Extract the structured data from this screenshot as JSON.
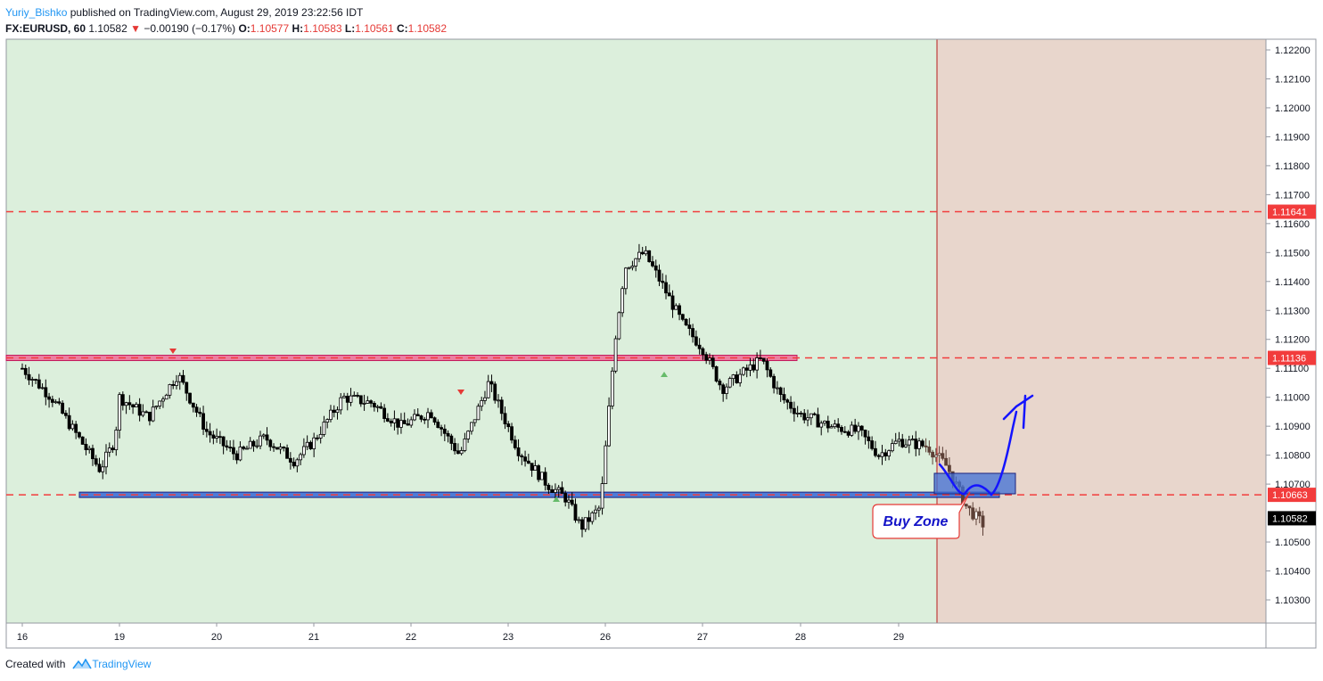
{
  "header": {
    "author": "Yuriy_Bishko",
    "published": "published on TradingView.com, August 29, 2019 23:22:56 IDT",
    "symbol": "FX:EURUSD, 60",
    "last": "1.10582",
    "change": "−0.00190 (−0.17%)",
    "o_label": "O:",
    "o_value": "1.10577",
    "h_label": "H:",
    "h_value": "1.10583",
    "l_label": "L:",
    "l_value": "1.10561",
    "c_label": "C:",
    "c_value": "1.10582"
  },
  "footer": {
    "created_with": "Created with",
    "brand": "TradingView"
  },
  "colors": {
    "bg_past": "#dcefdc",
    "bg_future": "#e8d6cc",
    "resistance": "#f06292",
    "support": "#3f6fd6",
    "level_line": "#f23c3c",
    "candle": "#000000",
    "arrow": "#1414ff",
    "last_price_tag": "#000000"
  },
  "chart_data": {
    "type": "candlestick",
    "symbol": "FX:EURUSD",
    "timeframe": "60",
    "x_ticks": [
      "16",
      "19",
      "20",
      "21",
      "22",
      "23",
      "26",
      "27",
      "28",
      "29"
    ],
    "y_ticks": [
      "1.12200",
      "1.12100",
      "1.12000",
      "1.11900",
      "1.11800",
      "1.11700",
      "1.11600",
      "1.11500",
      "1.11400",
      "1.11300",
      "1.11200",
      "1.11100",
      "1.11000",
      "1.10900",
      "1.10800",
      "1.10700",
      "1.10500",
      "1.10400",
      "1.10300"
    ],
    "ylim": [
      1.1025,
      1.1227
    ],
    "levels": [
      {
        "label": "1.11641",
        "value": 1.11641
      },
      {
        "label": "1.11136",
        "value": 1.11136
      },
      {
        "label": "1.10663",
        "value": 1.10663
      }
    ],
    "last_price": {
      "label": "1.10582",
      "value": 1.10582
    },
    "annotations": [
      {
        "text": "Buy Zone"
      }
    ],
    "close_path": [
      [
        0,
        1.111
      ],
      [
        0.3,
        1.11
      ],
      [
        0.6,
        1.1085
      ],
      [
        0.8,
        1.1075
      ],
      [
        0.95,
        1.1085
      ],
      [
        1.0,
        1.11
      ],
      [
        1.3,
        1.1093
      ],
      [
        1.6,
        1.1108
      ],
      [
        1.9,
        1.1088
      ],
      [
        2.2,
        1.108
      ],
      [
        2.5,
        1.1086
      ],
      [
        2.8,
        1.1078
      ],
      [
        3.0,
        1.1085
      ],
      [
        3.3,
        1.11
      ],
      [
        3.6,
        1.1098
      ],
      [
        3.9,
        1.109
      ],
      [
        4.2,
        1.1095
      ],
      [
        4.5,
        1.108
      ],
      [
        4.8,
        1.1105
      ],
      [
        5.1,
        1.1082
      ],
      [
        5.4,
        1.107
      ],
      [
        5.6,
        1.1065
      ],
      [
        5.75,
        1.1055
      ],
      [
        5.95,
        1.1062
      ],
      [
        6.1,
        1.112
      ],
      [
        6.2,
        1.1145
      ],
      [
        6.4,
        1.115
      ],
      [
        6.6,
        1.1138
      ],
      [
        6.8,
        1.1125
      ],
      [
        7.0,
        1.1117
      ],
      [
        7.2,
        1.1103
      ],
      [
        7.4,
        1.1108
      ],
      [
        7.6,
        1.1113
      ],
      [
        7.8,
        1.11
      ],
      [
        8.0,
        1.1094
      ],
      [
        8.3,
        1.109
      ],
      [
        8.6,
        1.1088
      ],
      [
        8.8,
        1.108
      ],
      [
        9.0,
        1.1085
      ],
      [
        9.3,
        1.1083
      ],
      [
        9.5,
        1.1076
      ],
      [
        9.7,
        1.1062
      ],
      [
        9.9,
        1.1055
      ]
    ]
  }
}
